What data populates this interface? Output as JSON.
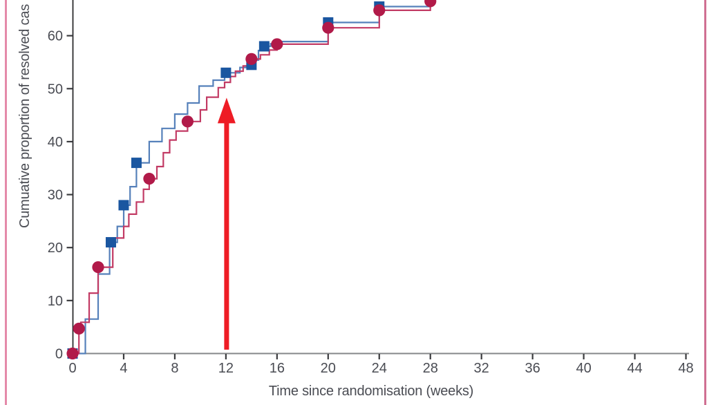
{
  "page": {
    "background": "#ffffff",
    "border_left_color": "#e48aa9",
    "border_right_color": "#cf6f92"
  },
  "chart_data": {
    "type": "line",
    "subtype": "step-function-cumulative-incidence",
    "title": "",
    "xlabel": "Time since randomisation (weeks)",
    "ylabel": "Cumuative proportion of resolved cas",
    "x_ticks": [
      0,
      4,
      8,
      12,
      16,
      20,
      24,
      28,
      32,
      36,
      40,
      44,
      48
    ],
    "y_ticks": [
      0,
      10,
      20,
      30,
      40,
      50,
      60
    ],
    "xlim": [
      0,
      48
    ],
    "ylim_visible": [
      0,
      66.8
    ],
    "grid": "off",
    "legend": "none-visible",
    "colors": {
      "blue_line": "#5580ba",
      "blue_marker": "#1a56a0",
      "red_line": "#c23a64",
      "red_marker": "#b11a49",
      "arrow": "#ee1c25",
      "axis_text": "#4a4c53",
      "y_axis_line": "#2a2a2c",
      "x_axis_line": "#85878a",
      "tick": "#3a3b3e"
    },
    "annotation": {
      "shape": "vertical-arrow-up",
      "at_week": 12,
      "tip_pct": 48.3,
      "base_pct": 0.6,
      "color": "#ee1c25"
    },
    "series": [
      {
        "name": "blue-squares",
        "marker": "square",
        "markers": [
          [
            0,
            0
          ],
          [
            3,
            21
          ],
          [
            4,
            28
          ],
          [
            5,
            36
          ],
          [
            12,
            53
          ],
          [
            14,
            54.5
          ],
          [
            15,
            58
          ],
          [
            20,
            62.5
          ],
          [
            24,
            65.5
          ]
        ],
        "steps": [
          [
            0,
            0
          ],
          [
            1,
            0
          ],
          [
            1,
            6.5
          ],
          [
            2,
            6.5
          ],
          [
            2,
            15
          ],
          [
            2.9,
            15
          ],
          [
            2.9,
            21
          ],
          [
            3.5,
            21
          ],
          [
            3.5,
            24
          ],
          [
            4,
            24
          ],
          [
            4,
            28
          ],
          [
            4.5,
            28
          ],
          [
            4.5,
            31.5
          ],
          [
            5,
            31.5
          ],
          [
            5,
            36
          ],
          [
            6,
            36
          ],
          [
            6,
            40
          ],
          [
            7,
            40
          ],
          [
            7,
            42.5
          ],
          [
            8,
            42.5
          ],
          [
            8,
            45.2
          ],
          [
            9,
            45.2
          ],
          [
            9,
            47.3
          ],
          [
            9.9,
            47.3
          ],
          [
            9.9,
            50.5
          ],
          [
            11,
            50.5
          ],
          [
            11,
            51.6
          ],
          [
            11.9,
            51.6
          ],
          [
            11.9,
            53
          ],
          [
            13.1,
            53
          ],
          [
            13.1,
            54
          ],
          [
            13.9,
            54
          ],
          [
            13.9,
            54.5
          ],
          [
            14.2,
            54.5
          ],
          [
            14.2,
            55.4
          ],
          [
            14.55,
            55.4
          ],
          [
            14.55,
            57.2
          ],
          [
            14.9,
            57.2
          ],
          [
            14.9,
            58
          ],
          [
            15.5,
            58
          ],
          [
            15.5,
            58.5
          ],
          [
            16.1,
            58.5
          ],
          [
            16.1,
            58.9
          ],
          [
            20,
            58.9
          ],
          [
            20,
            62.5
          ],
          [
            24,
            62.5
          ],
          [
            24,
            65.5
          ],
          [
            28,
            65.5
          ],
          [
            28,
            69
          ]
        ]
      },
      {
        "name": "red-circles",
        "marker": "circle",
        "markers": [
          [
            0,
            0
          ],
          [
            0.5,
            4.7
          ],
          [
            2,
            16.3
          ],
          [
            6,
            33
          ],
          [
            9,
            43.8
          ],
          [
            14,
            55.6
          ],
          [
            16,
            58.4
          ],
          [
            20,
            61.5
          ],
          [
            24,
            64.8
          ],
          [
            28,
            66.5
          ]
        ],
        "steps": [
          [
            0,
            0
          ],
          [
            0.5,
            0
          ],
          [
            0.5,
            4.7
          ],
          [
            0.65,
            4.7
          ],
          [
            0.65,
            5.9
          ],
          [
            1.3,
            5.9
          ],
          [
            1.3,
            11.4
          ],
          [
            2,
            11.4
          ],
          [
            2,
            16.3
          ],
          [
            3.15,
            16.3
          ],
          [
            3.15,
            21.8
          ],
          [
            4,
            21.8
          ],
          [
            4,
            24
          ],
          [
            4.4,
            24
          ],
          [
            4.4,
            26.3
          ],
          [
            5,
            26.3
          ],
          [
            5,
            28.6
          ],
          [
            5.55,
            28.6
          ],
          [
            5.55,
            31
          ],
          [
            6,
            31
          ],
          [
            6,
            33
          ],
          [
            6.6,
            33
          ],
          [
            6.6,
            35.3
          ],
          [
            7.1,
            35.3
          ],
          [
            7.1,
            37.9
          ],
          [
            7.6,
            37.9
          ],
          [
            7.6,
            40.3
          ],
          [
            8.1,
            40.3
          ],
          [
            8.1,
            42
          ],
          [
            9,
            42
          ],
          [
            9,
            43.8
          ],
          [
            10,
            43.8
          ],
          [
            10,
            46
          ],
          [
            10.5,
            46
          ],
          [
            10.5,
            48.4
          ],
          [
            11.4,
            48.4
          ],
          [
            11.4,
            50.2
          ],
          [
            11.9,
            50.2
          ],
          [
            11.9,
            51.2
          ],
          [
            12.35,
            51.2
          ],
          [
            12.35,
            52.3
          ],
          [
            12.75,
            52.3
          ],
          [
            12.75,
            53.3
          ],
          [
            13.35,
            53.3
          ],
          [
            13.35,
            54.3
          ],
          [
            14,
            54.3
          ],
          [
            14,
            55.6
          ],
          [
            14.7,
            55.6
          ],
          [
            14.7,
            56.4
          ],
          [
            15.4,
            56.4
          ],
          [
            15.4,
            57.3
          ],
          [
            16,
            57.3
          ],
          [
            16,
            58.4
          ],
          [
            20,
            58.4
          ],
          [
            20,
            61.5
          ],
          [
            24,
            61.5
          ],
          [
            24,
            64.8
          ],
          [
            28,
            64.8
          ],
          [
            28,
            68
          ]
        ]
      }
    ]
  }
}
